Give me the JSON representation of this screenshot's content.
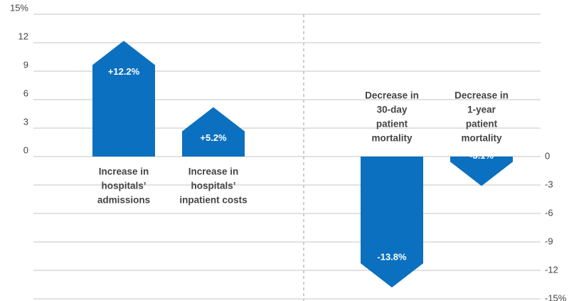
{
  "chart_data": {
    "type": "bar",
    "categories": [
      [
        "Increase in",
        "hospitals’",
        "admissions"
      ],
      [
        "Increase in",
        "hospitals’",
        "inpatient costs"
      ],
      [
        "Decrease in",
        "30-day",
        "patient",
        "mortality"
      ],
      [
        "Decrease in",
        "1-year",
        "patient",
        "mortality"
      ]
    ],
    "series": [
      {
        "axis": "y",
        "color": "#0b70bf",
        "values": [
          12.2,
          5.2,
          null,
          null
        ],
        "value_labels": [
          "+12.2%",
          "+5.2%",
          null,
          null
        ]
      },
      {
        "axis": "y2",
        "color": "#0b70bf",
        "values": [
          null,
          null,
          -13.8,
          -3.1
        ],
        "value_labels": [
          null,
          null,
          "-13.8%",
          "-3.1%"
        ]
      }
    ],
    "ylim": [
      0,
      15
    ],
    "yticks": [
      0,
      3,
      6,
      9,
      12,
      {
        "value": 15,
        "label": "15%"
      }
    ],
    "y2lim": [
      -15,
      0
    ],
    "y2ticks": [
      0,
      -3,
      -6,
      -9,
      -12,
      {
        "value": -15,
        "label": "-15%"
      }
    ],
    "grid": true
  }
}
